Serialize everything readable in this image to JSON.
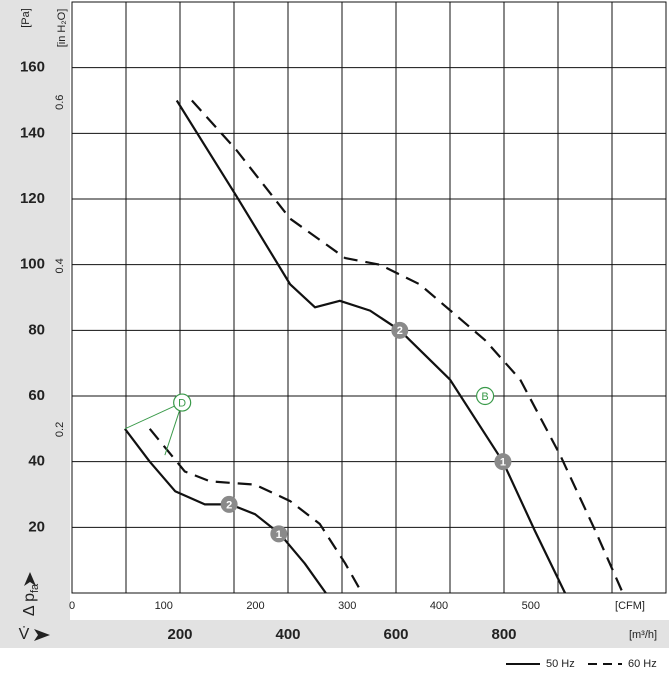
{
  "chart_data": {
    "type": "line",
    "y_label": "Δ p",
    "y_label_sub": "fa",
    "x_label": "V̇",
    "y_unit": "[Pa]",
    "y2_unit": "[in H₂O]",
    "x_unit": "[m³/h]",
    "x2_unit": "[CFM]",
    "xlim": [
      0,
      1100
    ],
    "xticks": [
      200,
      400,
      600,
      800
    ],
    "x_gridlines": [
      100,
      200,
      300,
      400,
      500,
      600,
      700,
      800,
      900,
      1000
    ],
    "x2lim": [
      0,
      647.4
    ],
    "x2ticks": [
      0,
      100,
      200,
      300,
      400,
      500
    ],
    "ylim": [
      0,
      180
    ],
    "yticks": [
      20,
      40,
      60,
      80,
      100,
      120,
      140,
      160
    ],
    "y2lim": [
      0,
      0.7226
    ],
    "y2ticks": [
      0.2,
      0.4,
      0.6
    ],
    "grid": true,
    "series": [
      {
        "name": "50 Hz",
        "style": "solid",
        "color": "#111111",
        "curves": [
          {
            "x": [
              194,
              304,
              367,
              404,
              450,
              496,
              552,
              607,
              700,
              798,
              857,
              913
            ],
            "values": [
              150,
              121,
              104,
              94,
              87,
              89,
              86,
              80,
              65,
              40,
              19,
              0
            ]
          },
          {
            "x": [
              98,
              144,
              191,
              246,
              293,
              339,
              385,
              431,
              470
            ],
            "values": [
              50,
              40,
              31,
              27,
              27,
              24,
              18,
              9,
              0
            ]
          }
        ]
      },
      {
        "name": "60 Hz",
        "style": "dashed",
        "color": "#111111",
        "curves": [
          {
            "x": [
              222,
              304,
              404,
              506,
              570,
              644,
              765,
              830,
              904,
              969,
              1020
            ],
            "values": [
              150,
              135,
              114,
              102,
              100,
              94,
              77,
              65,
              42,
              19,
              0
            ]
          },
          {
            "x": [
              144,
              209,
              256,
              339,
              404,
              459,
              506,
              537
            ],
            "values": [
              50,
              37,
              34,
              33,
              28,
              21,
              9,
              0
            ]
          }
        ]
      }
    ],
    "points": [
      {
        "label": "2",
        "x": 607,
        "y": 80
      },
      {
        "label": "1",
        "x": 798,
        "y": 40
      },
      {
        "label": "2",
        "x": 291,
        "y": 27
      },
      {
        "label": "1",
        "x": 383,
        "y": 18
      }
    ],
    "callouts": [
      {
        "label": "D",
        "x": 204,
        "y": 58,
        "targets": [
          [
            98,
            50
          ],
          [
            172,
            42
          ]
        ]
      },
      {
        "label": "B",
        "x": 765,
        "y": 60,
        "targets": []
      }
    ]
  }
}
